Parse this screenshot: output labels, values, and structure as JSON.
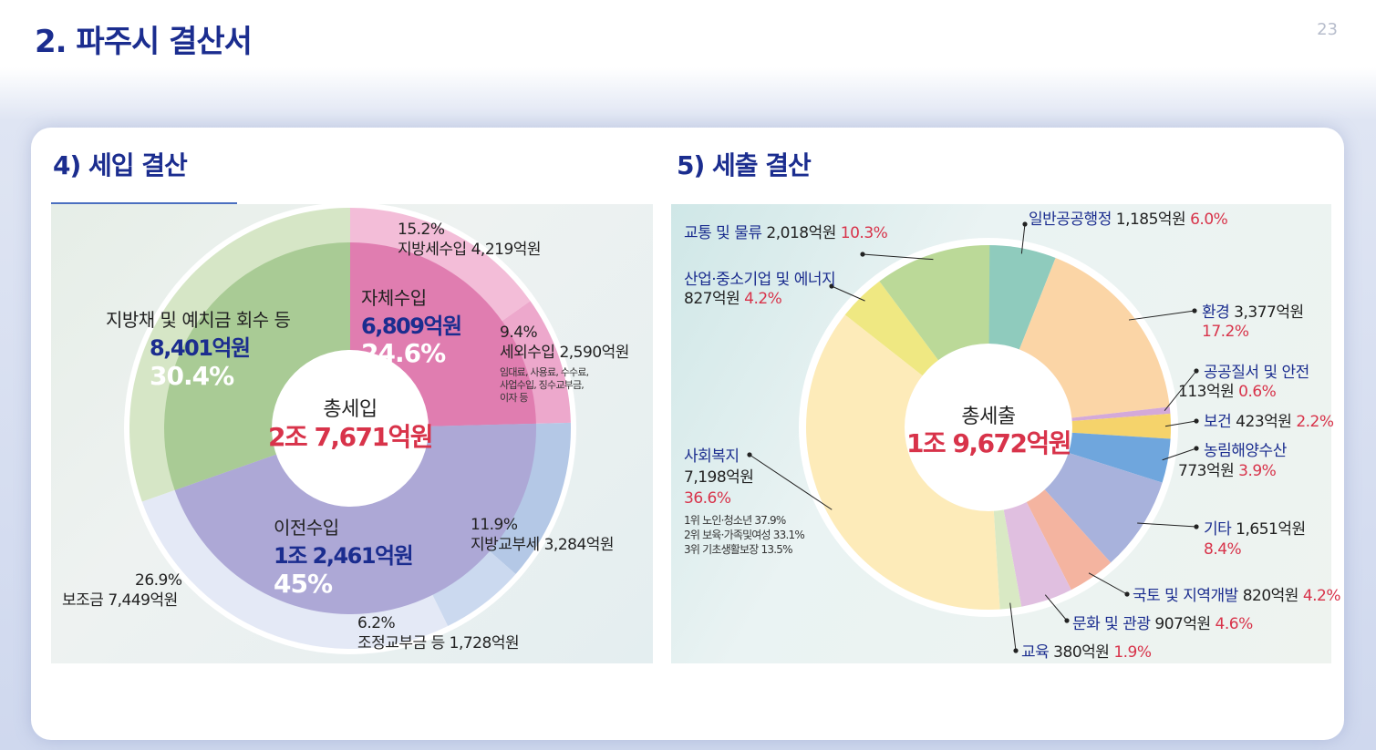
{
  "page_title": "2. 파주시 결산서",
  "page_number": "23",
  "chart_data": [
    {
      "type": "pie",
      "title": "4) 세입 결산",
      "center_label": "총세입",
      "center_value": "2조 7,671억원",
      "inner_ring": [
        {
          "name": "자체수입",
          "amount": "6,809억원",
          "percent": 24.6,
          "percent_label": "24.6%",
          "color": "#e07db0"
        },
        {
          "name": "이전수입",
          "amount": "1조 2,461억원",
          "percent": 45,
          "percent_label": "45%",
          "color": "#ada8d6"
        },
        {
          "name": "지방채 및 예치금 회수 등",
          "amount": "8,401억원",
          "percent": 30.4,
          "percent_label": "30.4%",
          "color": "#a9cb95"
        }
      ],
      "outer_ring": [
        {
          "percent": 15.2,
          "percent_label": "15.2%",
          "label": "지방세수입 4,219억원",
          "color": "#f3bdd8"
        },
        {
          "percent": 9.4,
          "percent_label": "9.4%",
          "label": "세외수입 2,590억원",
          "note": [
            "임대료, 사용료, 수수료,",
            "사업수입, 징수교부금,",
            "이자 등"
          ],
          "color": "#eda8cc"
        },
        {
          "percent": 11.9,
          "percent_label": "11.9%",
          "label": "지방교부세 3,284억원",
          "color": "#b4c8e6"
        },
        {
          "percent": 6.2,
          "percent_label": "6.2%",
          "label": "조정교부금 등 1,728억원",
          "color": "#cbd9ef"
        },
        {
          "percent": 26.9,
          "percent_label": "26.9%",
          "label": "보조금 7,449억원",
          "color": "#e4e9f6"
        },
        {
          "percent": 30.4,
          "percent_label": "",
          "label": "",
          "color": "#d6e6c6"
        }
      ]
    },
    {
      "type": "pie",
      "title": "5) 세출 결산",
      "center_label": "총세출",
      "center_value": "1조 9,672억원",
      "slices": [
        {
          "name": "일반공공행정",
          "amount": "1,185억원",
          "percent": 6.0,
          "percent_label": "6.0%",
          "color": "#8fcbbd"
        },
        {
          "name": "환경",
          "amount": "3,377억원",
          "percent": 17.2,
          "percent_label": "17.2%",
          "color": "#fbd5a6"
        },
        {
          "name": "공공질서 및 안전",
          "amount": "113억원",
          "percent": 0.6,
          "percent_label": "0.6%",
          "color": "#d4a9d9"
        },
        {
          "name": "보건",
          "amount": "423억원",
          "percent": 2.2,
          "percent_label": "2.2%",
          "color": "#f5d36b"
        },
        {
          "name": "농림해양수산",
          "amount": "773억원",
          "percent": 3.9,
          "percent_label": "3.9%",
          "color": "#6fa6dd"
        },
        {
          "name": "기타",
          "amount": "1,651억원",
          "percent": 8.4,
          "percent_label": "8.4%",
          "color": "#a8b2dc"
        },
        {
          "name": "국토 및 지역개발",
          "amount": "820억원",
          "percent": 4.2,
          "percent_label": "4.2%",
          "color": "#f4b4a0"
        },
        {
          "name": "문화 및 관광",
          "amount": "907억원",
          "percent": 4.6,
          "percent_label": "4.6%",
          "color": "#e0bfe0"
        },
        {
          "name": "교육",
          "amount": "380억원",
          "percent": 1.9,
          "percent_label": "1.9%",
          "color": "#d9e9c4"
        },
        {
          "name": "사회복지",
          "amount": "7,198억원",
          "percent": 36.6,
          "percent_label": "36.6%",
          "color": "#fdebb9",
          "details": [
            "1위 노인·청소년 37.9%",
            "2위 보육·가족및여성 33.1%",
            "3위 기초생활보장 13.5%"
          ]
        },
        {
          "name": "산업·중소기업 및 에너지",
          "amount": "827억원",
          "percent": 4.2,
          "percent_label": "4.2%",
          "color": "#efe882"
        },
        {
          "name": "교통 및 물류",
          "amount": "2,018억원",
          "percent": 10.3,
          "percent_label": "10.3%",
          "color": "#bbd998"
        }
      ]
    }
  ]
}
